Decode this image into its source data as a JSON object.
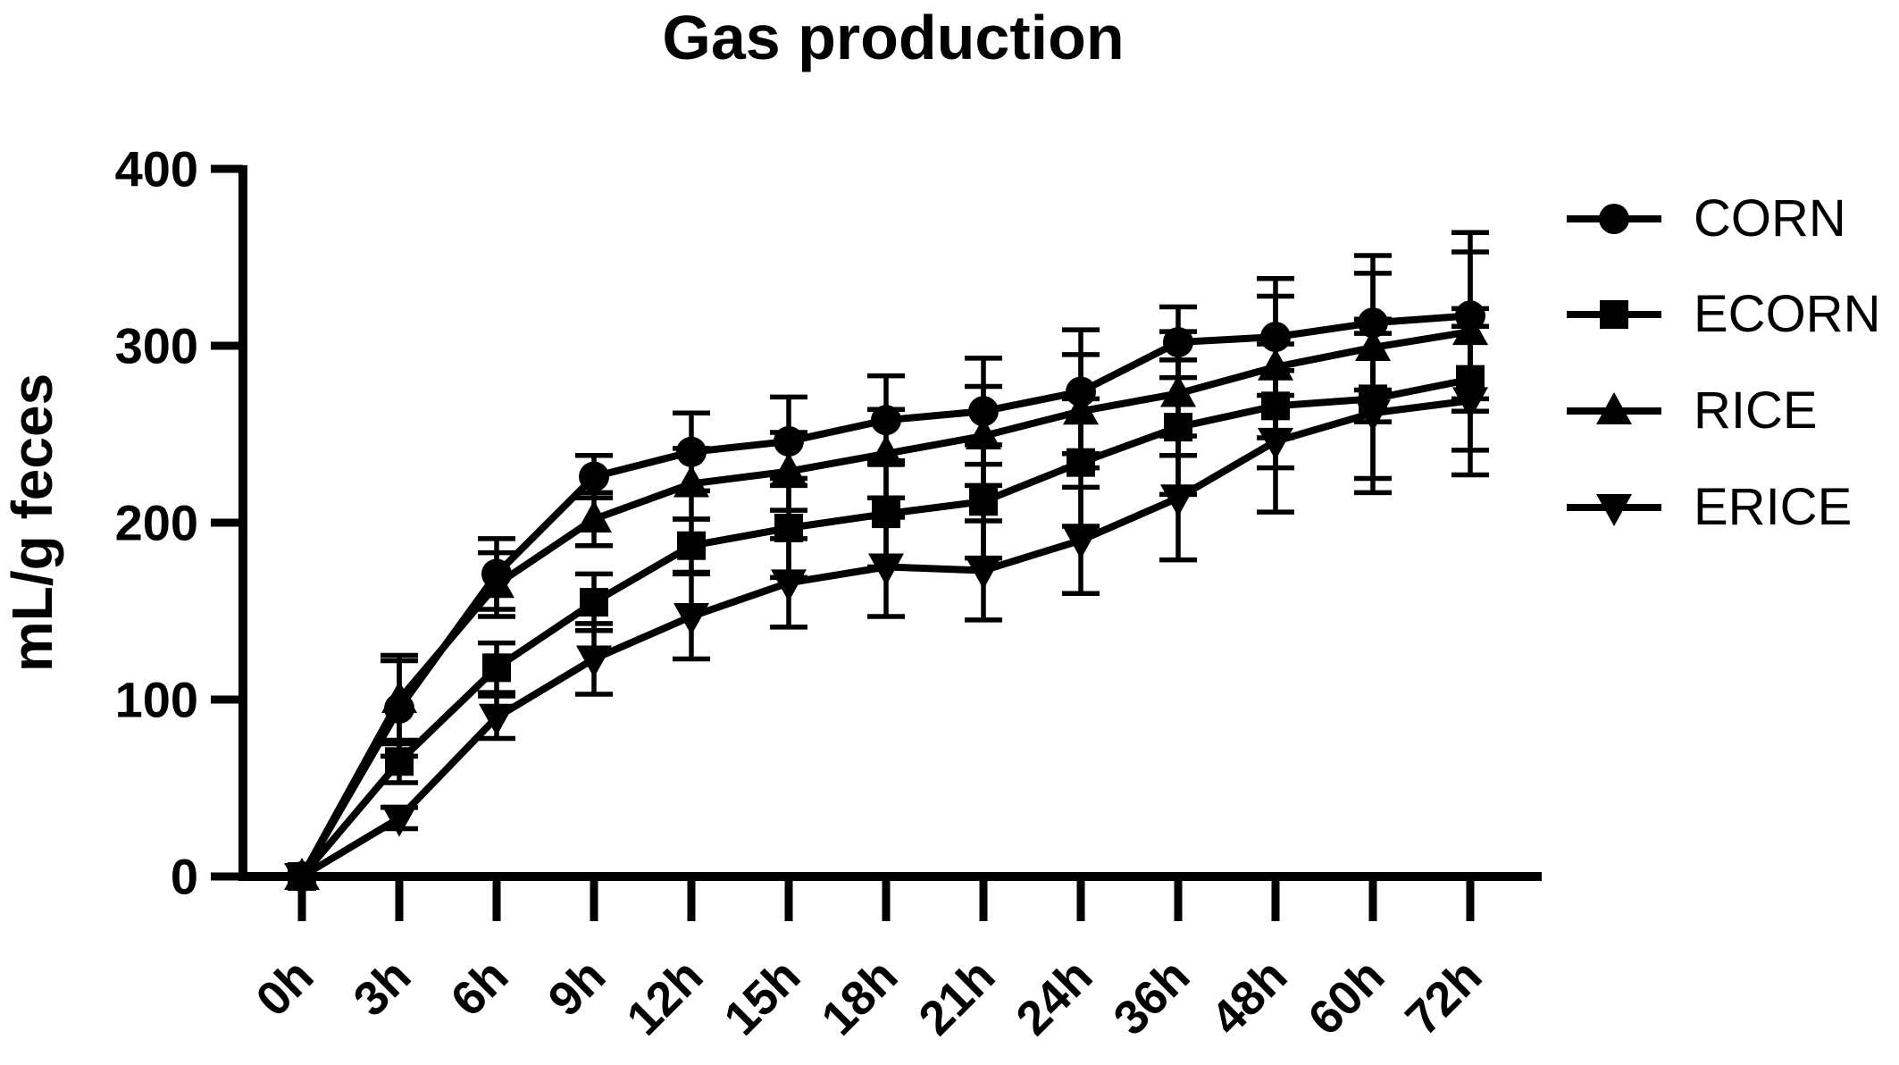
{
  "title": "Gas production",
  "chart_data": {
    "type": "line",
    "title": "Gas production",
    "xlabel": "",
    "ylabel": "mL/g feces",
    "categories": [
      "0h",
      "3h",
      "6h",
      "9h",
      "12h",
      "15h",
      "18h",
      "21h",
      "24h",
      "36h",
      "48h",
      "60h",
      "72h"
    ],
    "ylim": [
      0,
      400
    ],
    "yticks": [
      0,
      100,
      200,
      300,
      400
    ],
    "grid": false,
    "legend_position": "right",
    "line_color": "#000000",
    "background_color": "#ffffff",
    "error_bars": true,
    "series": [
      {
        "name": "CORN",
        "marker": "circle",
        "values": [
          0,
          95,
          171,
          226,
          240,
          246,
          258,
          263,
          274,
          302,
          305,
          313,
          317
        ],
        "errors": [
          0,
          27,
          20,
          12,
          22,
          25,
          25,
          30,
          35,
          20,
          33,
          38,
          47
        ]
      },
      {
        "name": "ECORN",
        "marker": "square",
        "values": [
          0,
          65,
          118,
          155,
          187,
          197,
          205,
          212,
          234,
          254,
          266,
          270,
          281
        ],
        "errors": [
          0,
          12,
          14,
          16,
          15,
          28,
          30,
          32,
          36,
          38,
          35,
          45,
          40
        ]
      },
      {
        "name": "RICE",
        "marker": "triangle-up",
        "values": [
          0,
          100,
          165,
          202,
          222,
          229,
          239,
          249,
          263,
          273,
          288,
          299,
          308
        ],
        "errors": [
          0,
          25,
          18,
          15,
          20,
          22,
          25,
          28,
          32,
          35,
          40,
          42,
          45
        ]
      },
      {
        "name": "ERICE",
        "marker": "triangle-down",
        "values": [
          0,
          33,
          90,
          123,
          147,
          166,
          175,
          173,
          190,
          214,
          246,
          262,
          269
        ],
        "errors": [
          0,
          6,
          12,
          20,
          24,
          25,
          28,
          28,
          30,
          35,
          40,
          45,
          42
        ]
      }
    ]
  }
}
